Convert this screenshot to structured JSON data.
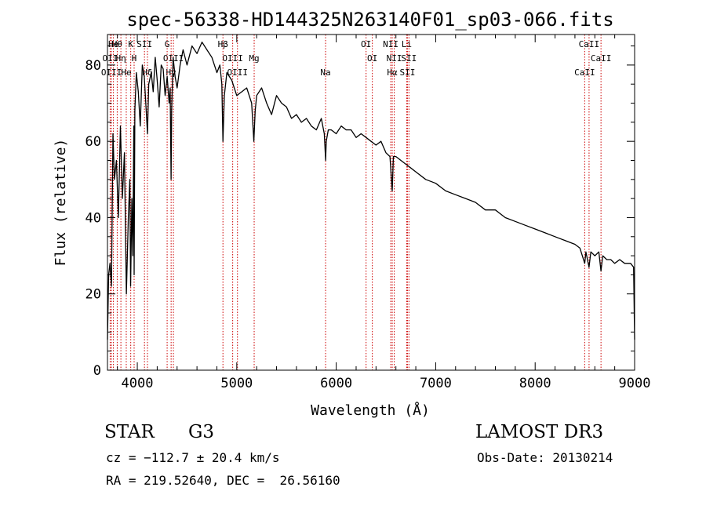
{
  "chart_data": {
    "type": "line",
    "title": "spec-56338-HD144325N263140F01_sp03-066.fits",
    "xlabel": "Wavelength (Å)",
    "ylabel": "Flux (relative)",
    "xlim": [
      3700,
      9000
    ],
    "ylim": [
      0,
      88
    ],
    "x_ticks": [
      4000,
      5000,
      6000,
      7000,
      8000,
      9000
    ],
    "y_ticks": [
      0,
      20,
      40,
      60,
      80
    ],
    "series": [
      {
        "name": "spectrum",
        "x": [
          3700,
          3712,
          3725,
          3740,
          3755,
          3770,
          3790,
          3810,
          3830,
          3850,
          3870,
          3890,
          3910,
          3925,
          3933,
          3945,
          3955,
          3965,
          3968,
          3975,
          3990,
          4010,
          4030,
          4050,
          4070,
          4090,
          4102,
          4115,
          4140,
          4160,
          4180,
          4200,
          4220,
          4240,
          4260,
          4280,
          4300,
          4320,
          4330,
          4340,
          4345,
          4360,
          4380,
          4400,
          4430,
          4460,
          4500,
          4550,
          4600,
          4650,
          4700,
          4750,
          4800,
          4830,
          4850,
          4861,
          4875,
          4900,
          4950,
          5000,
          5050,
          5100,
          5150,
          5172,
          5185,
          5200,
          5250,
          5300,
          5350,
          5400,
          5450,
          5500,
          5550,
          5600,
          5650,
          5700,
          5750,
          5800,
          5850,
          5880,
          5893,
          5900,
          5920,
          5950,
          6000,
          6050,
          6100,
          6150,
          6200,
          6250,
          6300,
          6350,
          6400,
          6450,
          6500,
          6540,
          6563,
          6575,
          6600,
          6650,
          6700,
          6750,
          6800,
          6900,
          7000,
          7100,
          7200,
          7300,
          7400,
          7500,
          7600,
          7700,
          7800,
          7900,
          8000,
          8100,
          8200,
          8300,
          8400,
          8450,
          8498,
          8510,
          8542,
          8560,
          8600,
          8640,
          8662,
          8680,
          8720,
          8760,
          8800,
          8850,
          8900,
          8960,
          8990,
          9000
        ],
        "y": [
          8,
          25,
          28,
          22,
          62,
          50,
          55,
          40,
          64,
          45,
          57,
          20,
          40,
          50,
          22,
          45,
          30,
          64,
          25,
          68,
          78,
          73,
          64,
          80,
          77,
          68,
          62,
          75,
          78,
          73,
          82,
          76,
          69,
          80,
          79,
          72,
          77,
          70,
          74,
          50,
          68,
          82,
          77,
          74,
          80,
          84,
          80,
          85,
          83,
          86,
          84,
          82,
          78,
          80,
          75,
          60,
          72,
          78,
          76,
          72,
          73,
          74,
          70,
          60,
          68,
          72,
          74,
          70,
          67,
          72,
          70,
          69,
          66,
          67,
          65,
          66,
          64,
          63,
          66,
          62,
          55,
          60,
          63,
          63,
          62,
          64,
          63,
          63,
          61,
          62,
          61,
          60,
          59,
          60,
          57,
          56,
          47,
          56,
          56,
          55,
          54,
          53,
          52,
          50,
          49,
          47,
          46,
          45,
          44,
          42,
          42,
          40,
          39,
          38,
          37,
          36,
          35,
          34,
          33,
          32,
          28,
          31,
          27,
          31,
          30,
          31,
          26,
          30,
          29,
          29,
          28,
          29,
          28,
          28,
          27,
          8
        ]
      }
    ],
    "line_annotations": [
      {
        "label": "Hθ",
        "x": 3798
      },
      {
        "label": "OII",
        "x": 3727
      },
      {
        "label": "OIII",
        "x": 3740
      },
      {
        "label": "He",
        "x": 3760
      },
      {
        "label": "Hη",
        "x": 3835
      },
      {
        "label": "He",
        "x": 3889
      },
      {
        "label": "K",
        "x": 3934
      },
      {
        "label": "H",
        "x": 3968
      },
      {
        "label": "Hδ",
        "x": 4102
      },
      {
        "label": "SII",
        "x": 4072
      },
      {
        "label": "OIII",
        "x": 4363
      },
      {
        "label": "Hγ",
        "x": 4340
      },
      {
        "label": "G",
        "x": 4300
      },
      {
        "label": "OIII",
        "x": 4959
      },
      {
        "label": "OIII",
        "x": 5007
      },
      {
        "label": "Hβ",
        "x": 4861
      },
      {
        "label": "Mg",
        "x": 5175
      },
      {
        "label": "Na",
        "x": 5893
      },
      {
        "label": "OI",
        "x": 6300
      },
      {
        "label": "OI",
        "x": 6363
      },
      {
        "label": "Hα",
        "x": 6563
      },
      {
        "label": "NII",
        "x": 6548
      },
      {
        "label": "NII",
        "x": 6583
      },
      {
        "label": "SII",
        "x": 6716
      },
      {
        "label": "Li",
        "x": 6708
      },
      {
        "label": "SII",
        "x": 6731
      },
      {
        "label": "CaII",
        "x": 8498
      },
      {
        "label": "CaII",
        "x": 8542
      },
      {
        "label": "CaII",
        "x": 8662
      }
    ]
  },
  "info": {
    "object_class": "STAR",
    "subclass": "G3",
    "survey": "LAMOST DR3",
    "redshift": "cz = −112.7 ± 20.4 km/s",
    "obs_date": "Obs-Date: 20130214",
    "coordinates": "RA = 219.52640, DEC =  26.56160"
  },
  "colors": {
    "spectrum": "#000000",
    "line_marker": "#cc0000",
    "axes": "#000000"
  }
}
